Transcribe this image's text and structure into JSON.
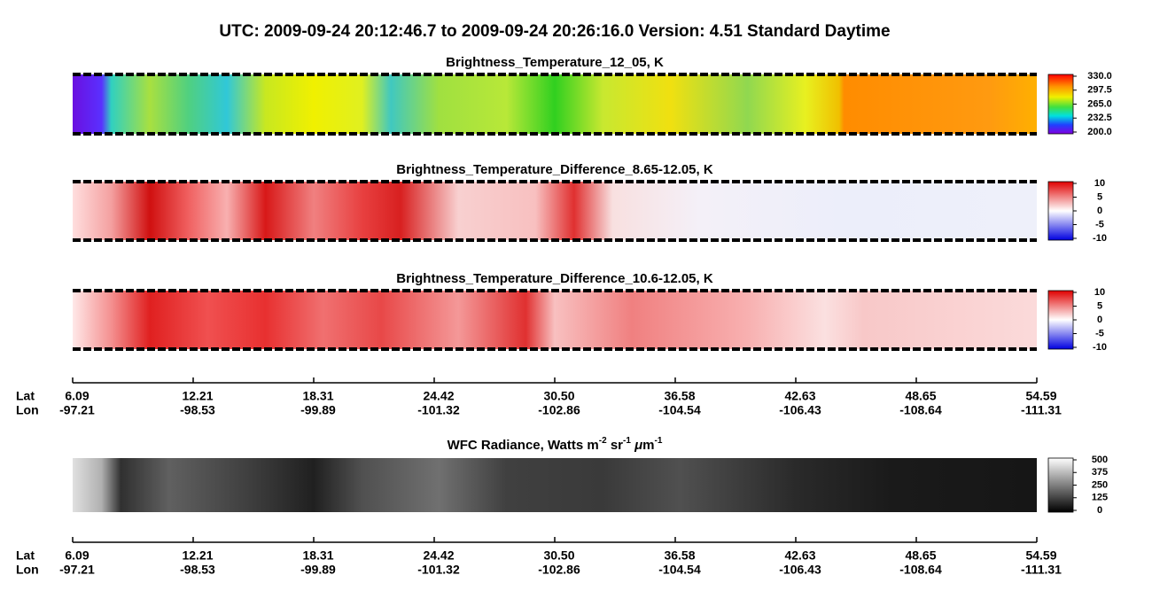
{
  "title": "UTC:  2009-09-24   20:12:46.7  to  2009-09-24   20:26:16.0    Version: 4.51  Standard Daytime",
  "panels": [
    {
      "title": "Brightness_Temperature_12_05, K",
      "colorbar": [
        "330.0",
        "297.5",
        "265.0",
        "232.5",
        "200.0"
      ]
    },
    {
      "title": "Brightness_Temperature_Difference_8.65-12.05, K",
      "colorbar": [
        "10",
        "5",
        "0",
        "-5",
        "-10"
      ]
    },
    {
      "title": "Brightness_Temperature_Difference_10.6-12.05, K",
      "colorbar": [
        "10",
        "5",
        "0",
        "-5",
        "-10"
      ]
    },
    {
      "title_parts": [
        "WFC Radiance, Watts m",
        "-2",
        " sr",
        "-1",
        " μ",
        "m",
        "-1"
      ],
      "colorbar": [
        "500",
        "375",
        "250",
        "125",
        "0"
      ]
    }
  ],
  "axes": [
    {
      "row_labels": [
        "Lat",
        "Lon"
      ],
      "lat": [
        "6.09",
        "12.21",
        "18.31",
        "24.42",
        "30.50",
        "36.58",
        "42.63",
        "48.65",
        "54.59"
      ],
      "lon": [
        "-97.21",
        "-98.53",
        "-99.89",
        "-101.32",
        "-102.86",
        "-104.54",
        "-106.43",
        "-108.64",
        "-111.31"
      ]
    },
    {
      "row_labels": [
        "Lat",
        "Lon"
      ],
      "lat": [
        "6.09",
        "12.21",
        "18.31",
        "24.42",
        "30.50",
        "36.58",
        "42.63",
        "48.65",
        "54.59"
      ],
      "lon": [
        "-97.21",
        "-98.53",
        "-99.89",
        "-101.32",
        "-102.86",
        "-104.54",
        "-106.43",
        "-108.64",
        "-111.31"
      ]
    }
  ]
}
